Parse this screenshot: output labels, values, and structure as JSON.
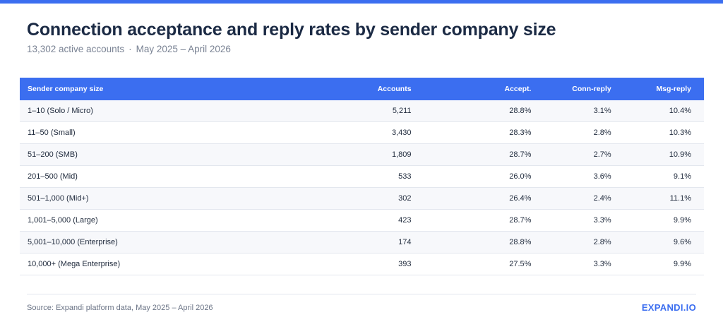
{
  "header": {
    "title": "Connection acceptance and reply rates by sender company size",
    "accounts_text": "13,302 active accounts",
    "separator": "·",
    "period": "May 2025 – April 2026"
  },
  "table": {
    "columns": [
      "Sender company size",
      "Accounts",
      "Accept.",
      "Conn-reply",
      "Msg-reply"
    ],
    "rows": [
      [
        "1–10 (Solo / Micro)",
        "5,211",
        "28.8%",
        "3.1%",
        "10.4%"
      ],
      [
        "11–50 (Small)",
        "3,430",
        "28.3%",
        "2.8%",
        "10.3%"
      ],
      [
        "51–200 (SMB)",
        "1,809",
        "28.7%",
        "2.7%",
        "10.9%"
      ],
      [
        "201–500 (Mid)",
        "533",
        "26.0%",
        "3.6%",
        "9.1%"
      ],
      [
        "501–1,000 (Mid+)",
        "302",
        "26.4%",
        "2.4%",
        "11.1%"
      ],
      [
        "1,001–5,000 (Large)",
        "423",
        "28.7%",
        "3.3%",
        "9.9%"
      ],
      [
        "5,001–10,000 (Enterprise)",
        "174",
        "28.8%",
        "2.8%",
        "9.6%"
      ],
      [
        "10,000+ (Mega Enterprise)",
        "393",
        "27.5%",
        "3.3%",
        "9.9%"
      ]
    ]
  },
  "footer": {
    "source": "Source: Expandi platform data, May 2025 – April 2026",
    "brand": "EXPANDI.IO"
  },
  "colors": {
    "accent": "#3b6ef0",
    "title": "#1b2a44"
  }
}
